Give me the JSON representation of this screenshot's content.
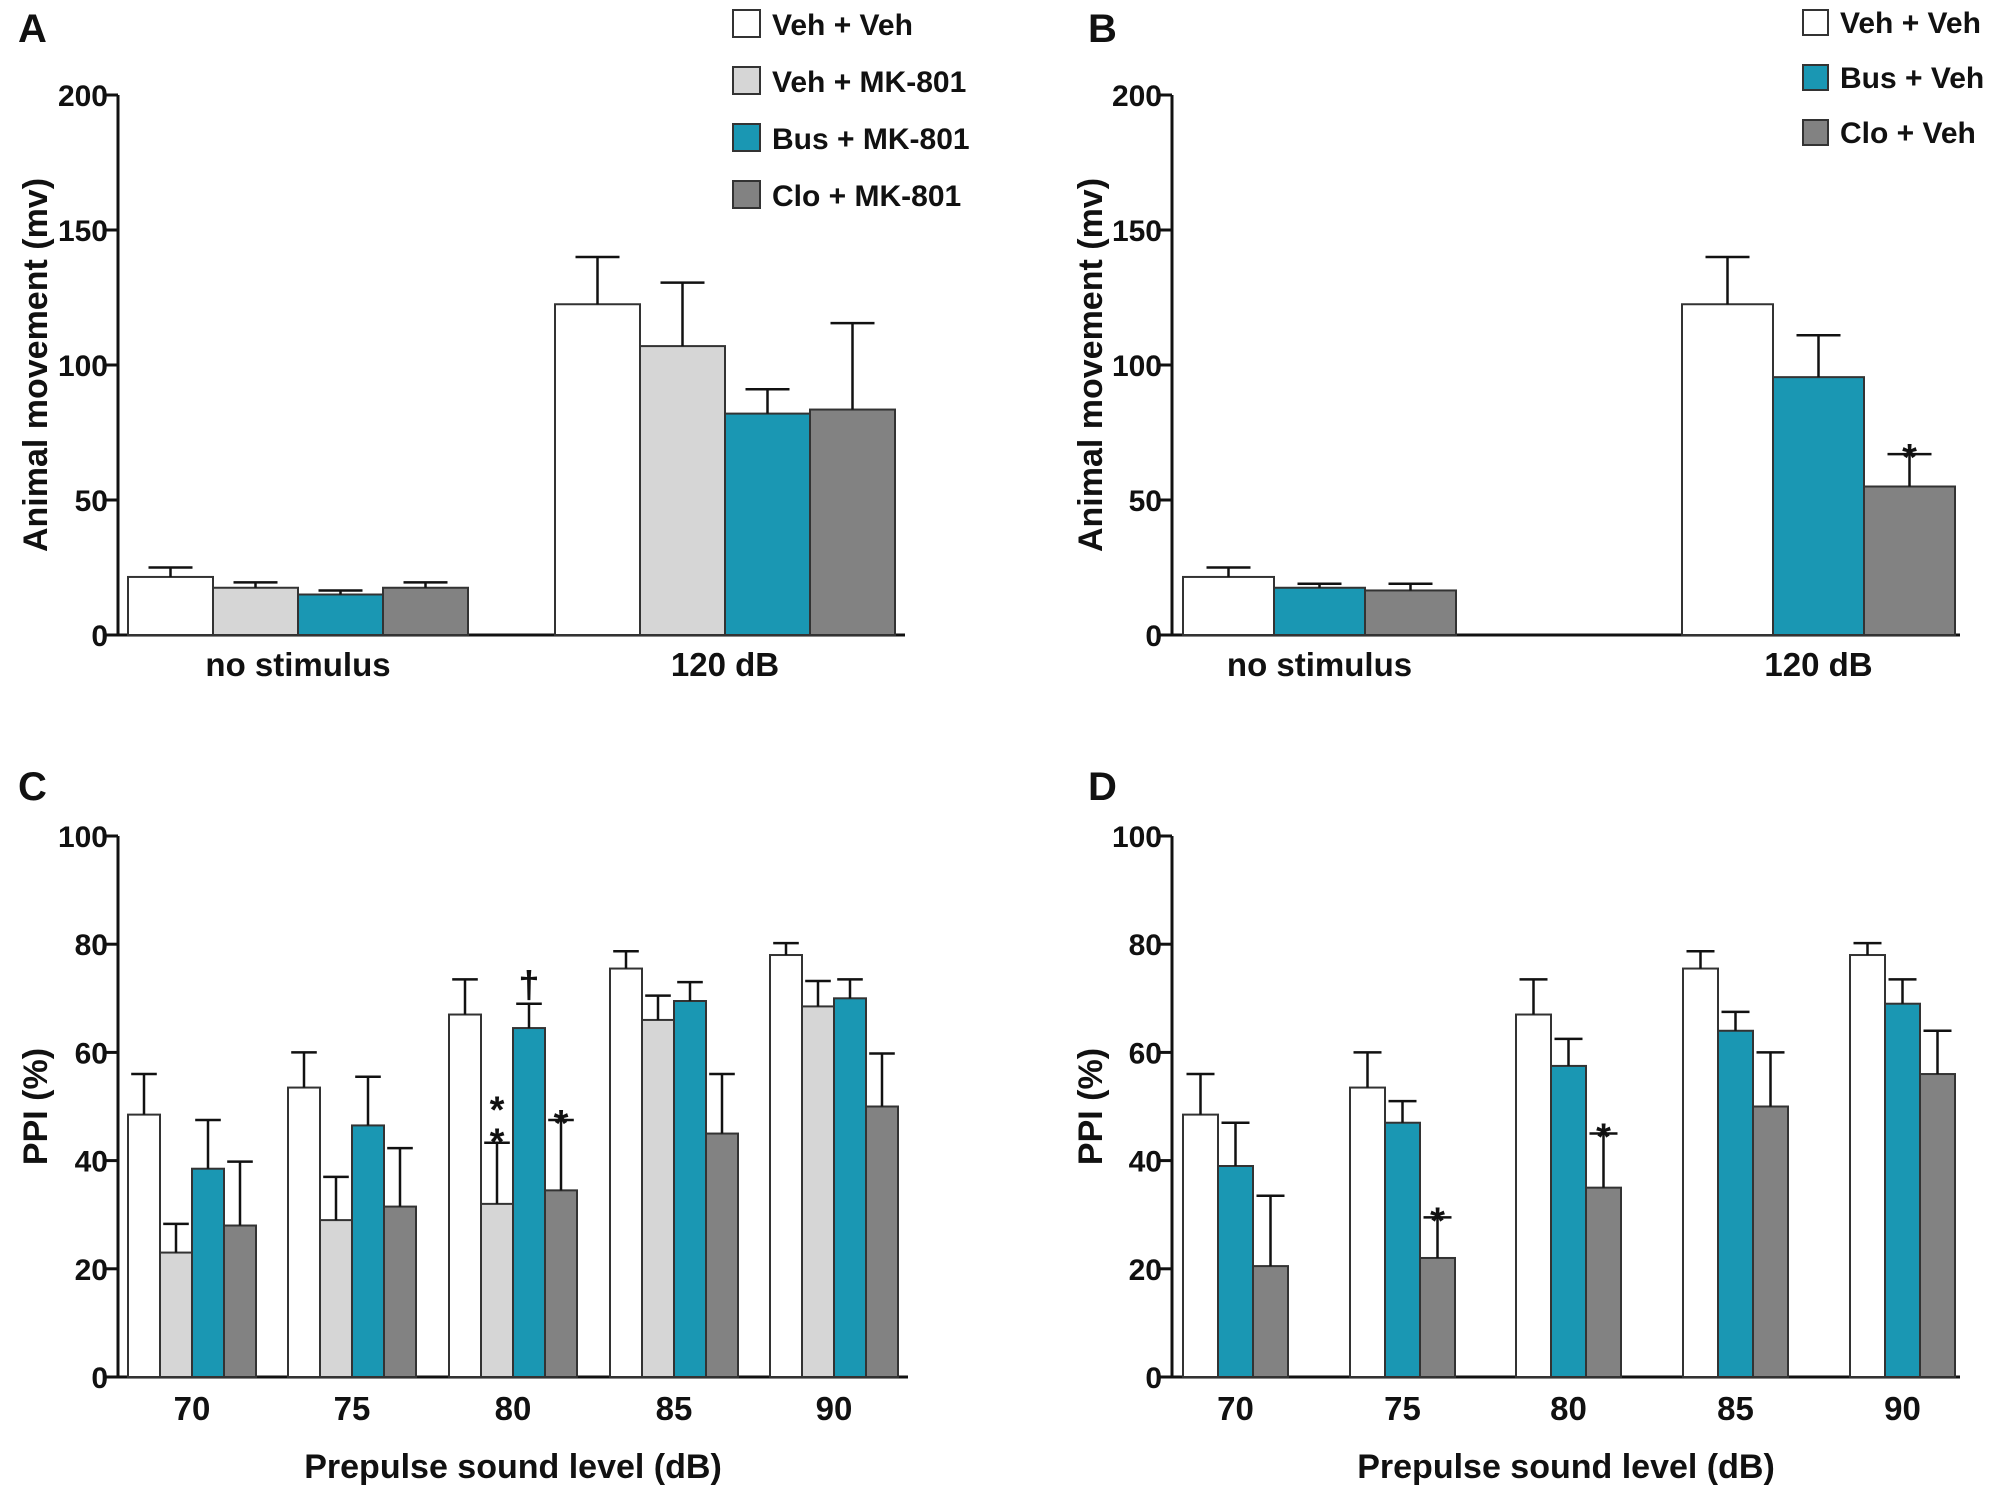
{
  "colors": {
    "veh_veh": "#ffffff",
    "veh_mk": "#d6d6d6",
    "bus": "#1a97b3",
    "clo": "#828282"
  },
  "chart_data": [
    {
      "panel": "A",
      "type": "bar",
      "ylabel": "Animal movement (mv)",
      "xlabel": "",
      "ylim": [
        0,
        200
      ],
      "yticks": [
        "0",
        "50",
        "100",
        "150",
        "200"
      ],
      "categories": [
        "no stimulus",
        "120 dB"
      ],
      "legend_position": "top-right",
      "series": [
        {
          "name": "Veh + Veh",
          "color_key": "veh_veh",
          "values": [
            21.5,
            122.5
          ],
          "errors": [
            3.5,
            17.5
          ]
        },
        {
          "name": "Veh + MK-801",
          "color_key": "veh_mk",
          "values": [
            17.5,
            107
          ],
          "errors": [
            2,
            23.5
          ]
        },
        {
          "name": "Bus + MK-801",
          "color_key": "bus",
          "values": [
            15,
            82
          ],
          "errors": [
            1.5,
            9
          ]
        },
        {
          "name": "Clo + MK-801",
          "color_key": "clo",
          "values": [
            17.5,
            83.5
          ],
          "errors": [
            2,
            32
          ]
        }
      ],
      "annotations": []
    },
    {
      "panel": "B",
      "type": "bar",
      "ylabel": "Animal movement (mv)",
      "xlabel": "",
      "ylim": [
        0,
        200
      ],
      "yticks": [
        "0",
        "50",
        "100",
        "150",
        "200"
      ],
      "categories": [
        "no stimulus",
        "120 dB"
      ],
      "legend_position": "top-right",
      "series": [
        {
          "name": "Veh + Veh",
          "color_key": "veh_veh",
          "values": [
            21.5,
            122.5
          ],
          "errors": [
            3.5,
            17.5
          ]
        },
        {
          "name": "Bus + Veh",
          "color_key": "bus",
          "values": [
            17.5,
            95.5
          ],
          "errors": [
            1.5,
            15.5
          ]
        },
        {
          "name": "Clo + Veh",
          "color_key": "clo",
          "values": [
            16.5,
            55
          ],
          "errors": [
            2.5,
            12
          ]
        }
      ],
      "annotations": [
        {
          "text": "*",
          "category": 1,
          "series": 2
        }
      ]
    },
    {
      "panel": "C",
      "type": "bar",
      "ylabel": "PPI (%)",
      "xlabel": "Prepulse sound level (dB)",
      "ylim": [
        0,
        100
      ],
      "yticks": [
        "0",
        "20",
        "40",
        "60",
        "80",
        "100"
      ],
      "categories": [
        "70",
        "75",
        "80",
        "85",
        "90"
      ],
      "series": [
        {
          "name": "Veh + Veh",
          "color_key": "veh_veh",
          "values": [
            48.5,
            53.5,
            67,
            75.5,
            78
          ],
          "errors": [
            7.5,
            6.5,
            6.5,
            3.2,
            2.2
          ]
        },
        {
          "name": "Veh + MK-801",
          "color_key": "veh_mk",
          "values": [
            23,
            29,
            32,
            66,
            68.5
          ],
          "errors": [
            5.3,
            8,
            11.3,
            4.5,
            4.7
          ]
        },
        {
          "name": "Bus + MK-801",
          "color_key": "bus",
          "values": [
            38.5,
            46.5,
            64.5,
            69.5,
            70
          ],
          "errors": [
            9,
            9,
            4.5,
            3.5,
            3.5
          ]
        },
        {
          "name": "Clo + MK-801",
          "color_key": "clo",
          "values": [
            28,
            31.5,
            34.5,
            45,
            50
          ],
          "errors": [
            11.8,
            10.8,
            13,
            11,
            9.8
          ]
        }
      ],
      "annotations": [
        {
          "text": "*",
          "category": 2,
          "series": 1,
          "offset": 0
        },
        {
          "text": "*",
          "category": 2,
          "series": 1,
          "offset": 1
        },
        {
          "text": "†",
          "category": 2,
          "series": 2,
          "offset": 0
        },
        {
          "text": "*",
          "category": 2,
          "series": 3,
          "offset": 0
        }
      ]
    },
    {
      "panel": "D",
      "type": "bar",
      "ylabel": "PPI (%)",
      "xlabel": "Prepulse sound level (dB)",
      "ylim": [
        0,
        100
      ],
      "yticks": [
        "0",
        "20",
        "40",
        "60",
        "80",
        "100"
      ],
      "categories": [
        "70",
        "75",
        "80",
        "85",
        "90"
      ],
      "series": [
        {
          "name": "Veh + Veh",
          "color_key": "veh_veh",
          "values": [
            48.5,
            53.5,
            67,
            75.5,
            78
          ],
          "errors": [
            7.5,
            6.5,
            6.5,
            3.2,
            2.2
          ]
        },
        {
          "name": "Bus + Veh",
          "color_key": "bus",
          "values": [
            39,
            47,
            57.5,
            64,
            69
          ],
          "errors": [
            8,
            4,
            5,
            3.5,
            4.5
          ]
        },
        {
          "name": "Clo + Veh",
          "color_key": "clo",
          "values": [
            20.5,
            22,
            35,
            50,
            56
          ],
          "errors": [
            13,
            7.5,
            10,
            10,
            8
          ]
        }
      ],
      "annotations": [
        {
          "text": "*",
          "category": 1,
          "series": 2,
          "offset": 0
        },
        {
          "text": "*",
          "category": 2,
          "series": 2,
          "offset": 0
        }
      ]
    }
  ]
}
